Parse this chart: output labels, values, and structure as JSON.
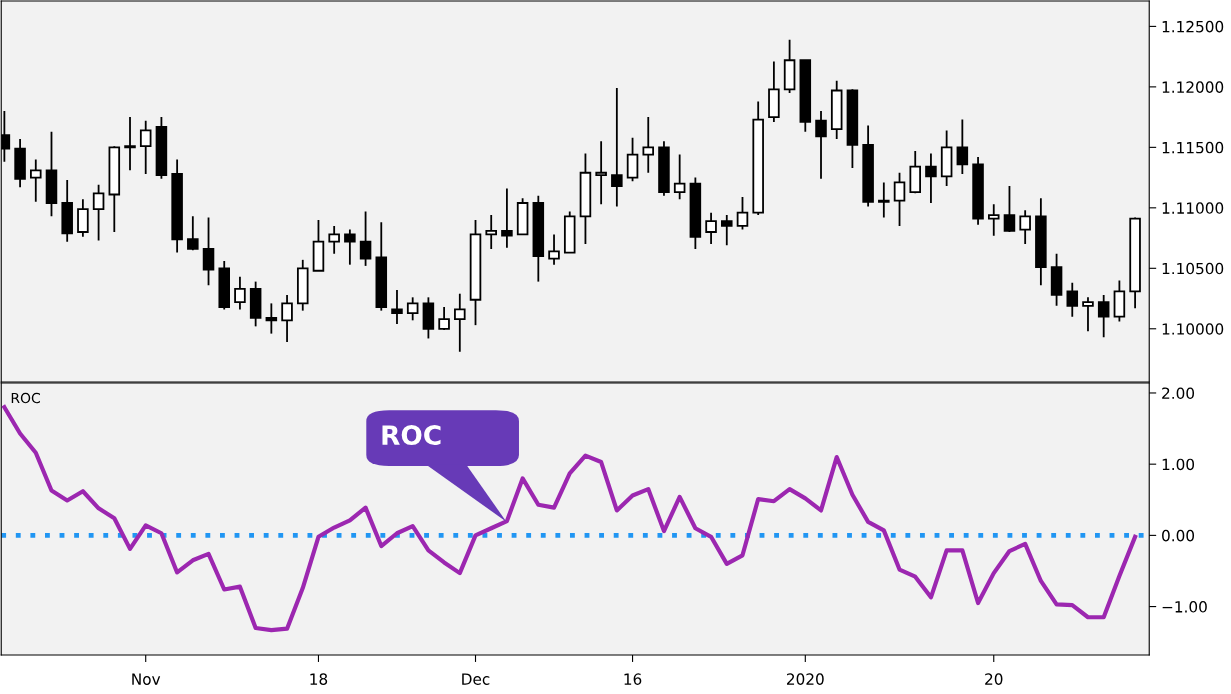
{
  "chart_data": [
    {
      "type": "candlestick",
      "categories": [
        null,
        null,
        null,
        null,
        null,
        null,
        null,
        null,
        null,
        null,
        null,
        null,
        null,
        null,
        null,
        null,
        null,
        null,
        null,
        null,
        null,
        null,
        null,
        null,
        null,
        null,
        null,
        null,
        null,
        null,
        null,
        null,
        null,
        null,
        null,
        null,
        null,
        null,
        null,
        null,
        null,
        null,
        null,
        null,
        null,
        null,
        null,
        null,
        null,
        null,
        null,
        null,
        null,
        null,
        null,
        null,
        null,
        null,
        null,
        null,
        null,
        null,
        null,
        null,
        null,
        null,
        null,
        null,
        null,
        null,
        null,
        null,
        null
      ],
      "ohlc": [
        [
          1.116,
          1.118,
          1.1138,
          1.1149
        ],
        [
          1.1149,
          1.1157,
          1.1117,
          1.1124
        ],
        [
          1.1125,
          1.114,
          1.1105,
          1.1131
        ],
        [
          1.1131,
          1.1163,
          1.1093,
          1.1104
        ],
        [
          1.1104,
          1.1123,
          1.1072,
          1.1079
        ],
        [
          1.108,
          1.1107,
          1.1076,
          1.1099
        ],
        [
          1.1099,
          1.1119,
          1.1073,
          1.1112
        ],
        [
          1.1111,
          1.1151,
          1.108,
          1.115
        ],
        [
          1.115,
          1.1175,
          1.1131,
          1.1151
        ],
        [
          1.1151,
          1.1172,
          1.1128,
          1.1164
        ],
        [
          1.1167,
          1.1175,
          1.1124,
          1.1127
        ],
        [
          1.1128,
          1.114,
          1.1063,
          1.1074
        ],
        [
          1.1074,
          1.1093,
          1.1065,
          1.1066
        ],
        [
          1.1066,
          1.1092,
          1.1036,
          1.1049
        ],
        [
          1.105,
          1.1056,
          1.1016,
          1.1018
        ],
        [
          1.1022,
          1.1043,
          1.1016,
          1.1033
        ],
        [
          1.1033,
          1.1039,
          1.1002,
          1.1009
        ],
        [
          1.1009,
          1.1021,
          1.0996,
          1.1007
        ],
        [
          1.1007,
          1.1028,
          1.0989,
          1.1021
        ],
        [
          1.1021,
          1.1057,
          1.1015,
          1.105
        ],
        [
          1.1048,
          1.109,
          1.1048,
          1.1072
        ],
        [
          1.1072,
          1.1085,
          1.1062,
          1.1078
        ],
        [
          1.1078,
          1.1082,
          1.1053,
          1.1072
        ],
        [
          1.1072,
          1.1097,
          1.1052,
          1.1058
        ],
        [
          1.1059,
          1.1088,
          1.1015,
          1.1018
        ],
        [
          1.1016,
          1.1032,
          1.1004,
          1.1013
        ],
        [
          1.1013,
          1.1026,
          1.1007,
          1.1021
        ],
        [
          1.1021,
          1.1026,
          1.0992,
          1.1
        ],
        [
          1.1,
          1.1018,
          1.0999,
          1.1008
        ],
        [
          1.1008,
          1.1029,
          1.0981,
          1.1016
        ],
        [
          1.1024,
          1.109,
          1.1003,
          1.1078
        ],
        [
          1.1078,
          1.1094,
          1.1066,
          1.1081
        ],
        [
          1.1081,
          1.1116,
          1.1067,
          1.1077
        ],
        [
          1.1078,
          1.1108,
          1.1078,
          1.1104
        ],
        [
          1.1104,
          1.111,
          1.1039,
          1.106
        ],
        [
          1.1058,
          1.1078,
          1.1053,
          1.1064
        ],
        [
          1.1063,
          1.1097,
          1.1063,
          1.1093
        ],
        [
          1.1093,
          1.1145,
          1.107,
          1.1129
        ],
        [
          1.1127,
          1.1155,
          1.1103,
          1.1129
        ],
        [
          1.1127,
          1.1199,
          1.1101,
          1.1118
        ],
        [
          1.1125,
          1.1158,
          1.1122,
          1.1144
        ],
        [
          1.1144,
          1.1175,
          1.1129,
          1.115
        ],
        [
          1.115,
          1.1155,
          1.111,
          1.1113
        ],
        [
          1.1113,
          1.1144,
          1.1107,
          1.112
        ],
        [
          1.112,
          1.1125,
          1.1066,
          1.1076
        ],
        [
          1.108,
          1.1096,
          1.107,
          1.1089
        ],
        [
          1.1089,
          1.1094,
          1.1069,
          1.1085
        ],
        [
          1.1085,
          1.1109,
          1.1082,
          1.1096
        ],
        [
          1.1096,
          1.1188,
          1.1094,
          1.1173
        ],
        [
          1.1175,
          1.1221,
          1.1171,
          1.1198
        ],
        [
          1.1198,
          1.1239,
          1.1195,
          1.1222
        ],
        [
          1.1222,
          1.1222,
          1.1163,
          1.1171
        ],
        [
          1.1172,
          1.118,
          1.1124,
          1.1159
        ],
        [
          1.1165,
          1.1205,
          1.1157,
          1.1197
        ],
        [
          1.1197,
          1.1198,
          1.1133,
          1.1152
        ],
        [
          1.1152,
          1.1168,
          1.1101,
          1.1105
        ],
        [
          1.1106,
          1.1121,
          1.1092,
          1.1105
        ],
        [
          1.1106,
          1.1129,
          1.1085,
          1.1121
        ],
        [
          1.1113,
          1.1147,
          1.1112,
          1.1134
        ],
        [
          1.1134,
          1.1145,
          1.1104,
          1.1126
        ],
        [
          1.1126,
          1.1164,
          1.1118,
          1.115
        ],
        [
          1.115,
          1.1173,
          1.1128,
          1.1136
        ],
        [
          1.1136,
          1.1142,
          1.1086,
          1.1091
        ],
        [
          1.1091,
          1.1103,
          1.1077,
          1.1094
        ],
        [
          1.1094,
          1.1118,
          1.108,
          1.1081
        ],
        [
          1.1082,
          1.1098,
          1.107,
          1.1093
        ],
        [
          1.1093,
          1.1108,
          1.1036,
          1.1051
        ],
        [
          1.1051,
          1.1062,
          1.1019,
          1.1028
        ],
        [
          1.1031,
          1.1038,
          1.101,
          1.1019
        ],
        [
          1.1019,
          1.1026,
          1.0998,
          1.1022
        ],
        [
          1.1022,
          1.1028,
          1.0993,
          1.101
        ],
        [
          1.101,
          1.104,
          1.1006,
          1.1031
        ],
        [
          1.1031,
          1.1092,
          1.1017,
          1.1091
        ]
      ],
      "ylim": [
        1.0956,
        1.1271
      ],
      "yticks": [
        {
          "value": 1.1,
          "label": "1.10000"
        },
        {
          "value": 1.105,
          "label": "1.10500"
        },
        {
          "value": 1.11,
          "label": "1.11000"
        },
        {
          "value": 1.115,
          "label": "1.11500"
        },
        {
          "value": 1.12,
          "label": "1.12000"
        },
        {
          "value": 1.125,
          "label": "1.12500"
        }
      ],
      "tick_labels": "y"
    },
    {
      "type": "line",
      "title": "ROC",
      "categories": [
        null,
        null,
        null,
        null,
        null,
        null,
        null,
        null,
        null,
        "Nov",
        null,
        null,
        null,
        null,
        null,
        null,
        null,
        null,
        null,
        null,
        "18",
        null,
        null,
        null,
        null,
        null,
        null,
        null,
        null,
        null,
        "Dec",
        null,
        null,
        null,
        null,
        null,
        null,
        null,
        null,
        null,
        "16",
        null,
        null,
        null,
        null,
        null,
        null,
        null,
        null,
        null,
        null,
        "2020",
        null,
        null,
        null,
        null,
        null,
        null,
        null,
        null,
        null,
        null,
        null,
        "20",
        null,
        null,
        null,
        null,
        null,
        null,
        null,
        null,
        null
      ],
      "series": [
        {
          "color": "#9c27b0",
          "values": [
            1.8,
            1.43,
            1.16,
            0.63,
            0.49,
            0.62,
            0.38,
            0.24,
            -0.19,
            0.14,
            0.03,
            -0.52,
            -0.35,
            -0.26,
            -0.76,
            -0.72,
            -1.3,
            -1.33,
            -1.31,
            -0.74,
            -0.02,
            0.11,
            0.21,
            0.39,
            -0.15,
            0.03,
            0.13,
            -0.21,
            -0.38,
            -0.53,
            0.0,
            0.1,
            0.2,
            0.8,
            0.43,
            0.39,
            0.87,
            1.12,
            1.03,
            0.35,
            0.56,
            0.65,
            0.06,
            0.54,
            0.1,
            -0.02,
            -0.4,
            -0.28,
            0.51,
            0.48,
            0.65,
            0.52,
            0.35,
            1.1,
            0.57,
            0.19,
            0.07,
            -0.48,
            -0.58,
            -0.87,
            -0.21,
            -0.21,
            -0.95,
            -0.53,
            -0.22,
            -0.12,
            -0.64,
            -0.97,
            -0.98,
            -1.15,
            -1.15,
            -0.57,
            -0.02
          ]
        }
      ],
      "ylim": [
        -1.68,
        2.14
      ],
      "yticks": [
        {
          "value": -1,
          "label": "−1.00"
        },
        {
          "value": 0,
          "label": "0.00"
        },
        {
          "value": 1,
          "label": "1.00"
        },
        {
          "value": 2,
          "label": "2.00"
        }
      ],
      "ref_lines": [
        {
          "axis": "y",
          "value": 0,
          "color": "#2196f3",
          "line_style": "dotted"
        }
      ],
      "annotations": [
        "ROC"
      ],
      "line_style": "solid"
    }
  ]
}
